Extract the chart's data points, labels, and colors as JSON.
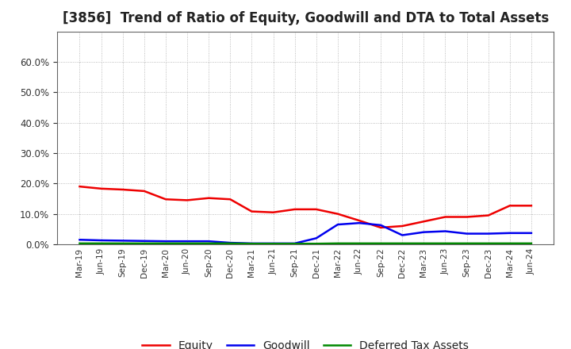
{
  "title": "[3856]  Trend of Ratio of Equity, Goodwill and DTA to Total Assets",
  "x_labels": [
    "Mar-19",
    "Jun-19",
    "Sep-19",
    "Dec-19",
    "Mar-20",
    "Jun-20",
    "Sep-20",
    "Dec-20",
    "Mar-21",
    "Jun-21",
    "Sep-21",
    "Dec-21",
    "Mar-22",
    "Jun-22",
    "Sep-22",
    "Dec-22",
    "Mar-23",
    "Jun-23",
    "Sep-23",
    "Dec-23",
    "Mar-24",
    "Jun-24"
  ],
  "equity": [
    0.19,
    0.183,
    0.18,
    0.175,
    0.148,
    0.145,
    0.152,
    0.148,
    0.108,
    0.105,
    0.115,
    0.115,
    0.1,
    0.078,
    0.055,
    0.06,
    0.075,
    0.09,
    0.09,
    0.095,
    0.127,
    0.127
  ],
  "goodwill": [
    0.015,
    0.013,
    0.012,
    0.011,
    0.01,
    0.01,
    0.01,
    0.005,
    0.003,
    0.003,
    0.003,
    0.02,
    0.065,
    0.07,
    0.063,
    0.03,
    0.04,
    0.043,
    0.035,
    0.035,
    0.037,
    0.037
  ],
  "dta": [
    0.003,
    0.003,
    0.003,
    0.003,
    0.003,
    0.003,
    0.003,
    0.003,
    0.002,
    0.002,
    0.002,
    0.002,
    0.003,
    0.003,
    0.003,
    0.003,
    0.003,
    0.003,
    0.003,
    0.003,
    0.003,
    0.003
  ],
  "equity_color": "#EE0000",
  "goodwill_color": "#0000EE",
  "dta_color": "#008800",
  "ylim": [
    0.0,
    0.7
  ],
  "yticks": [
    0.0,
    0.1,
    0.2,
    0.3,
    0.4,
    0.5,
    0.6
  ],
  "background_color": "#FFFFFF",
  "plot_bg_color": "#FFFFFF",
  "grid_color": "#AAAAAA",
  "title_fontsize": 12,
  "legend_labels": [
    "Equity",
    "Goodwill",
    "Deferred Tax Assets"
  ],
  "figsize": [
    7.2,
    4.4
  ],
  "dpi": 100
}
